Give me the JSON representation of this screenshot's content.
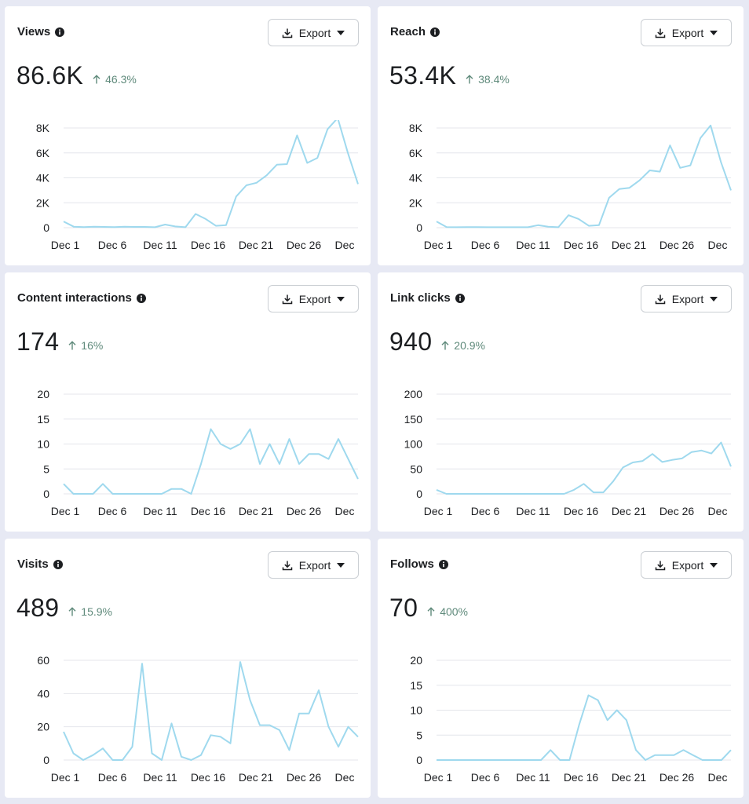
{
  "colors": {
    "line": "#9fd9ee",
    "grid": "#e4e6eb",
    "change": "#5f8a7b"
  },
  "cards": [
    {
      "title": "Views",
      "export_label": "Export",
      "value": "86.6K",
      "change": "46.3%",
      "chart_data": {
        "type": "line",
        "x_tick_labels": [
          "Dec 1",
          "Dec 6",
          "Dec 11",
          "Dec 16",
          "Dec 21",
          "Dec 26",
          "Dec"
        ],
        "y_tick_labels": [
          "0",
          "2K",
          "4K",
          "6K",
          "8K"
        ],
        "ylim": [
          0,
          8000
        ],
        "values": [
          500,
          80,
          50,
          80,
          60,
          50,
          80,
          60,
          60,
          40,
          250,
          100,
          40,
          1100,
          700,
          150,
          200,
          2500,
          3400,
          3600,
          4200,
          5050,
          5100,
          7400,
          5200,
          5600,
          7900,
          8800,
          6000,
          3500
        ]
      }
    },
    {
      "title": "Reach",
      "export_label": "Export",
      "value": "53.4K",
      "change": "38.4%",
      "chart_data": {
        "type": "line",
        "x_tick_labels": [
          "Dec 1",
          "Dec 6",
          "Dec 11",
          "Dec 16",
          "Dec 21",
          "Dec 26",
          "Dec"
        ],
        "y_tick_labels": [
          "0",
          "2K",
          "4K",
          "6K",
          "8K"
        ],
        "ylim": [
          0,
          8000
        ],
        "values": [
          500,
          50,
          40,
          50,
          50,
          40,
          40,
          40,
          40,
          40,
          200,
          80,
          40,
          1000,
          700,
          150,
          200,
          2400,
          3100,
          3200,
          3800,
          4600,
          4500,
          6600,
          4800,
          5000,
          7200,
          8200,
          5300,
          3000
        ]
      }
    },
    {
      "title": "Content interactions",
      "export_label": "Export",
      "value": "174",
      "change": "16%",
      "chart_data": {
        "type": "line",
        "x_tick_labels": [
          "Dec 1",
          "Dec 6",
          "Dec 11",
          "Dec 16",
          "Dec 21",
          "Dec 26",
          "Dec"
        ],
        "y_tick_labels": [
          "0",
          "5",
          "10",
          "15",
          "20"
        ],
        "ylim": [
          0,
          20
        ],
        "values": [
          2,
          0,
          0,
          0,
          2,
          0,
          0,
          0,
          0,
          0,
          0,
          1,
          1,
          0,
          6,
          13,
          10,
          9,
          10,
          13,
          6,
          10,
          6,
          11,
          6,
          8,
          8,
          7,
          11,
          7,
          3
        ]
      }
    },
    {
      "title": "Link clicks",
      "export_label": "Export",
      "value": "940",
      "change": "20.9%",
      "chart_data": {
        "type": "line",
        "x_tick_labels": [
          "Dec 1",
          "Dec 6",
          "Dec 11",
          "Dec 16",
          "Dec 21",
          "Dec 26",
          "Dec"
        ],
        "y_tick_labels": [
          "0",
          "50",
          "100",
          "150",
          "200"
        ],
        "ylim": [
          0,
          200
        ],
        "values": [
          8,
          0,
          0,
          0,
          0,
          0,
          0,
          0,
          0,
          0,
          0,
          0,
          0,
          0,
          8,
          20,
          3,
          3,
          25,
          53,
          63,
          66,
          80,
          64,
          68,
          71,
          84,
          87,
          81,
          103,
          55
        ]
      }
    },
    {
      "title": "Visits",
      "export_label": "Export",
      "value": "489",
      "change": "15.9%",
      "chart_data": {
        "type": "line",
        "x_tick_labels": [
          "Dec 1",
          "Dec 6",
          "Dec 11",
          "Dec 16",
          "Dec 21",
          "Dec 26",
          "Dec"
        ],
        "y_tick_labels": [
          "0",
          "20",
          "40",
          "60"
        ],
        "ylim": [
          0,
          60
        ],
        "values": [
          17,
          4,
          0,
          3,
          7,
          0,
          0,
          8,
          58,
          4,
          0,
          22,
          2,
          0,
          3,
          15,
          14,
          10,
          59,
          36,
          21,
          21,
          18,
          6,
          28,
          28,
          42,
          20,
          8,
          20,
          14
        ]
      }
    },
    {
      "title": "Follows",
      "export_label": "Export",
      "value": "70",
      "change": "400%",
      "chart_data": {
        "type": "line",
        "x_tick_labels": [
          "Dec 1",
          "Dec 6",
          "Dec 11",
          "Dec 16",
          "Dec 21",
          "Dec 26",
          "Dec"
        ],
        "y_tick_labels": [
          "0",
          "5",
          "10",
          "15",
          "20"
        ],
        "ylim": [
          0,
          20
        ],
        "values": [
          0,
          0,
          0,
          0,
          0,
          0,
          0,
          0,
          0,
          0,
          0,
          0,
          2,
          0,
          0,
          7,
          13,
          12,
          8,
          10,
          8,
          2,
          0,
          1,
          1,
          1,
          2,
          1,
          0,
          0,
          0,
          2
        ]
      }
    }
  ]
}
